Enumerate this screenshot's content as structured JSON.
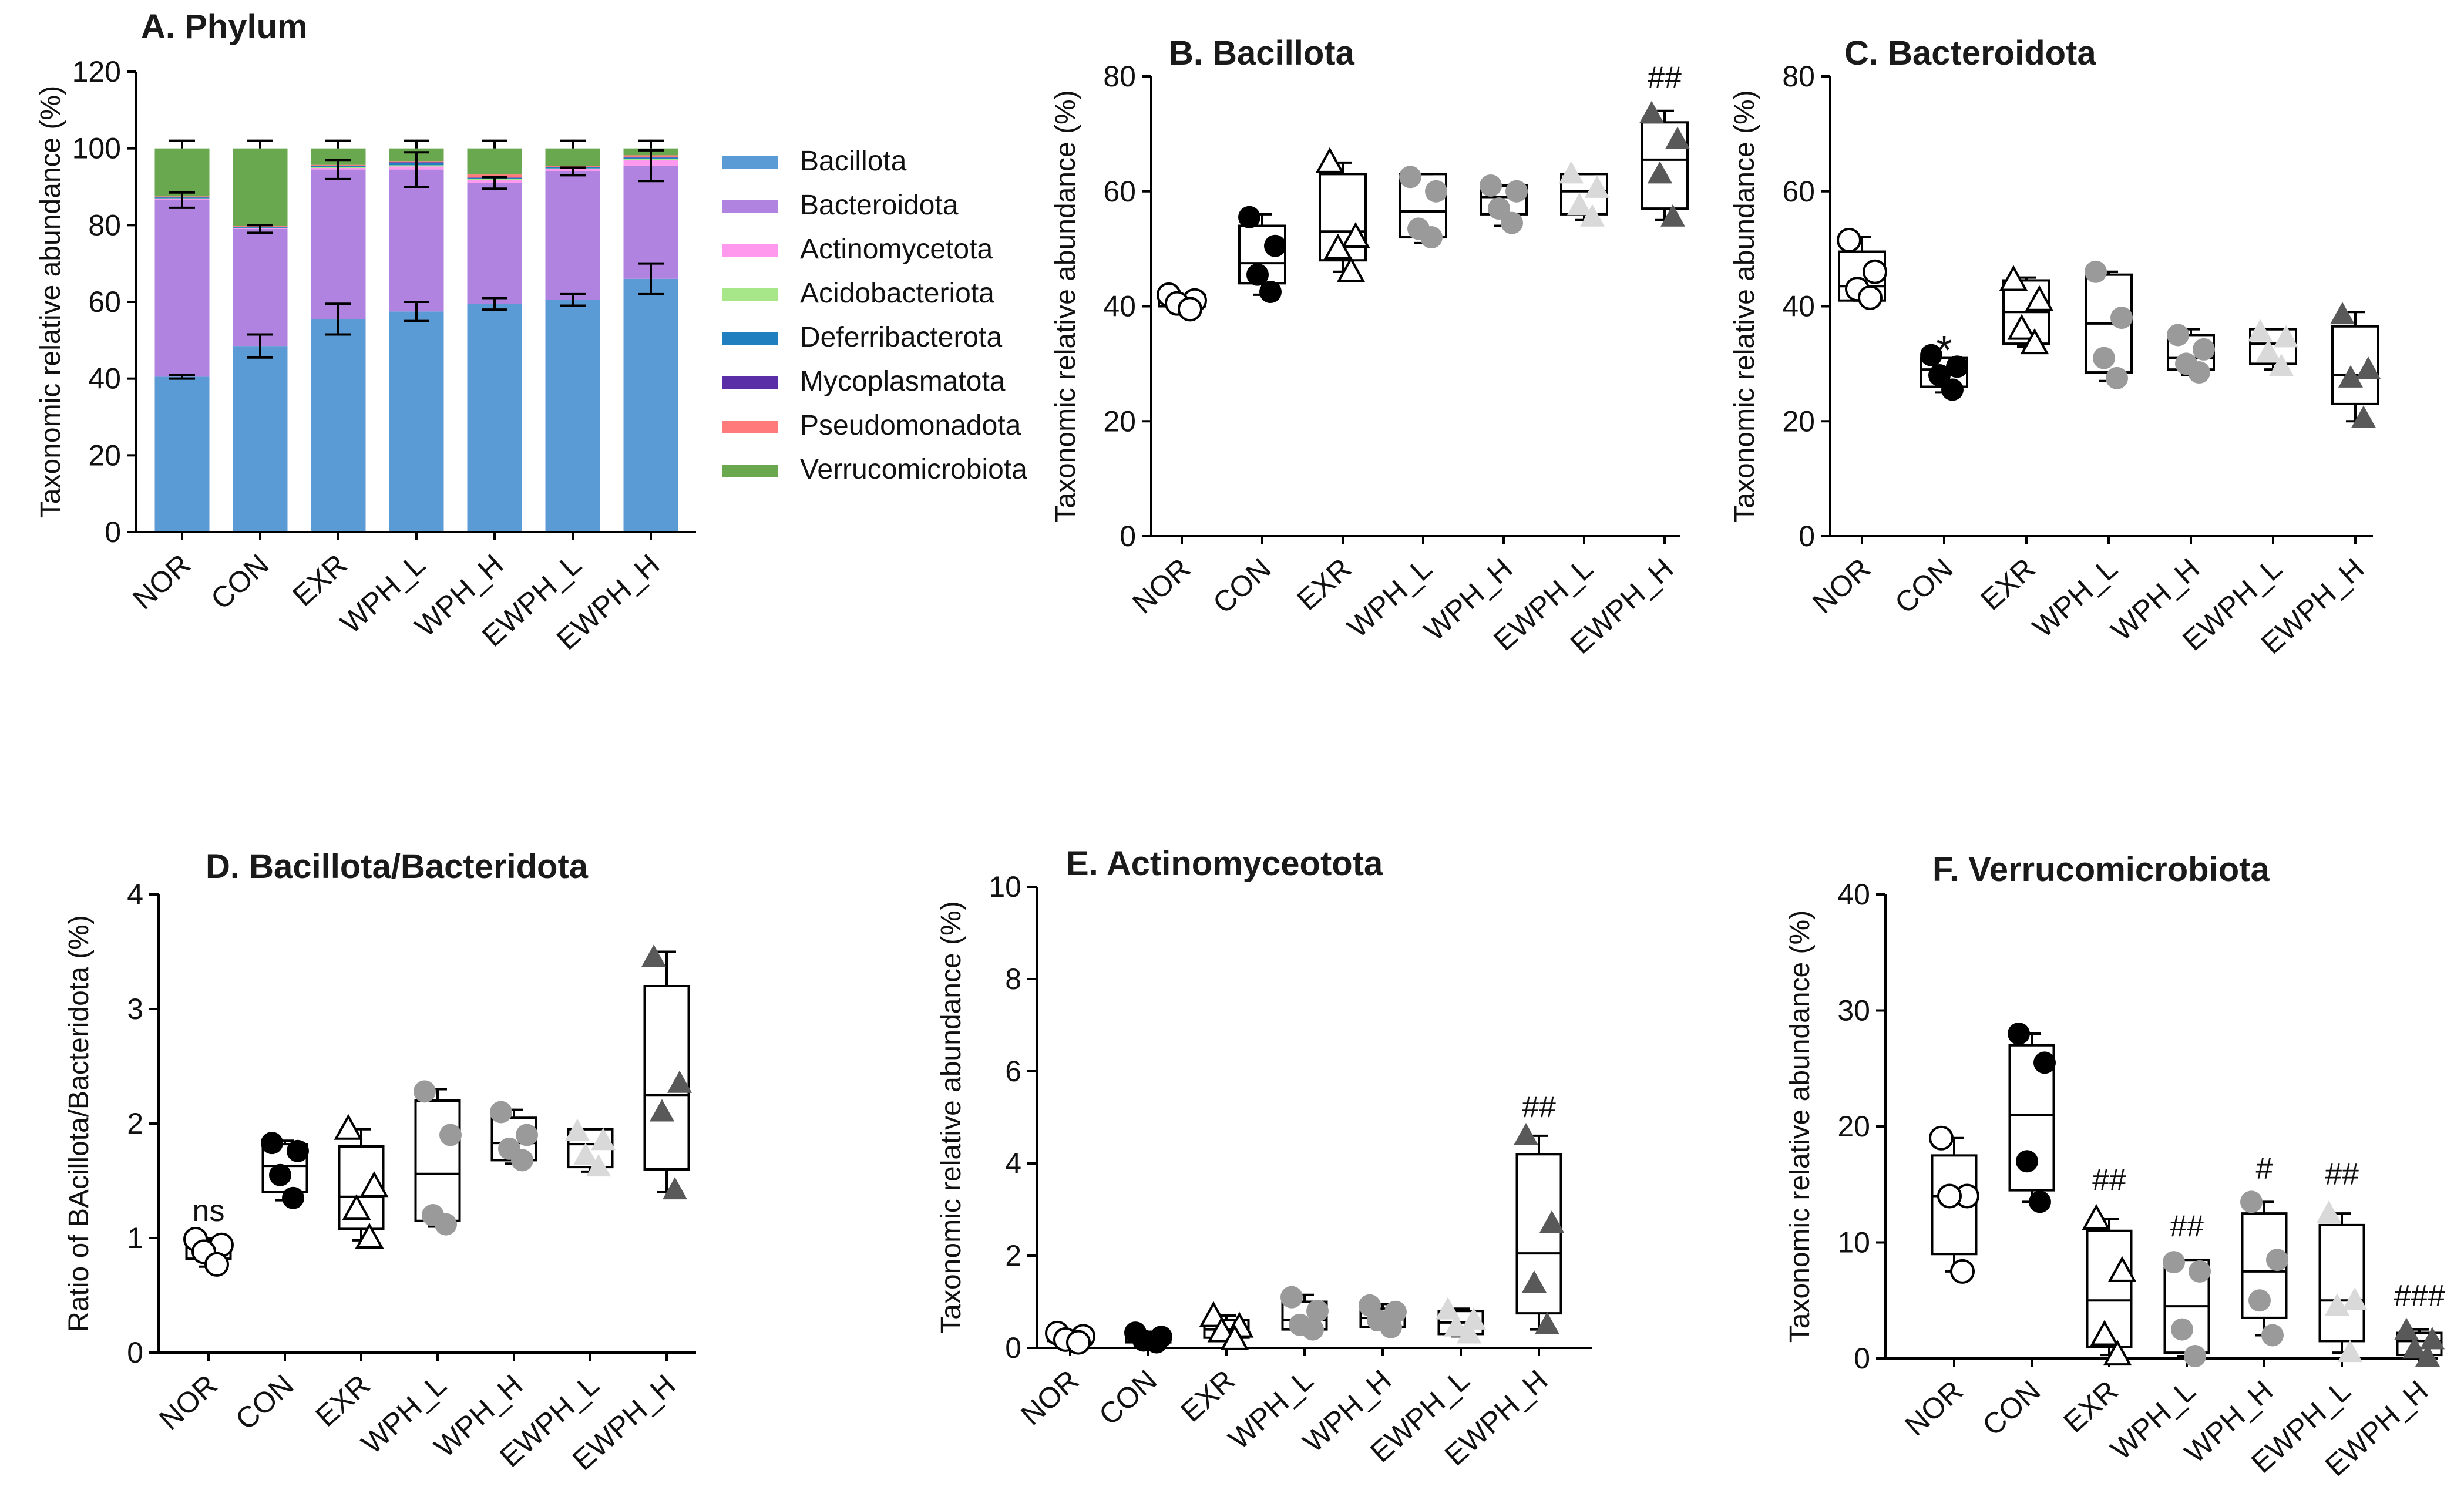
{
  "chart_data": [
    {
      "id": "A",
      "type": "stacked-bar",
      "title": "A. Phylum",
      "ylabel": "Taxonomic relative abundance (%)",
      "ylim": [
        0,
        120
      ],
      "yticks": [
        0,
        20,
        40,
        60,
        80,
        100,
        120
      ],
      "categories": [
        "NOR",
        "CON",
        "EXR",
        "WPH_L",
        "WPH_H",
        "EWPH_L",
        "EWPH_H"
      ],
      "series": [
        {
          "name": "Bacillota",
          "color": "#5b9bd5",
          "values": [
            40.5,
            48.5,
            55.5,
            57.5,
            59.5,
            60.5,
            66.0
          ],
          "errors": [
            0.5,
            3.0,
            4.0,
            2.5,
            1.5,
            1.5,
            4.0
          ]
        },
        {
          "name": "Bacteroidota",
          "color": "#b083e0",
          "values": [
            46.0,
            30.5,
            39.0,
            37.0,
            31.5,
            33.5,
            29.5
          ],
          "errors": [
            2.0,
            1.0,
            2.5,
            4.5,
            1.5,
            1.0,
            4.0
          ]
        },
        {
          "name": "Actinomycetota",
          "color": "#ff99ee",
          "values": [
            0.3,
            0.2,
            0.4,
            0.8,
            0.7,
            0.6,
            1.5
          ]
        },
        {
          "name": "Acidobacteriota",
          "color": "#a8e68a",
          "values": [
            0.2,
            0.1,
            0.2,
            0.3,
            0.3,
            0.2,
            0.3
          ]
        },
        {
          "name": "Deferribacterota",
          "color": "#1f7fbf",
          "values": [
            0.2,
            0.2,
            0.3,
            0.6,
            0.3,
            0.3,
            0.3
          ]
        },
        {
          "name": "Mycoplasmatota",
          "color": "#5a2ea6",
          "values": [
            0.1,
            0.1,
            0.1,
            0.2,
            0.1,
            0.1,
            0.1
          ]
        },
        {
          "name": "Pseudomonadota",
          "color": "#ff7a7a",
          "values": [
            0.2,
            0.2,
            0.2,
            0.3,
            0.8,
            0.3,
            0.5
          ]
        },
        {
          "name": "Verrucomicrobiota",
          "color": "#6aa84f",
          "values": [
            12.5,
            20.2,
            4.3,
            3.3,
            6.8,
            4.5,
            1.8
          ]
        }
      ],
      "legend_position": "right"
    },
    {
      "id": "B",
      "type": "box",
      "title": "B. Bacillota",
      "ylabel": "Taxonomic relative abundance (%)",
      "ylim": [
        0,
        80
      ],
      "yticks": [
        0,
        20,
        40,
        60,
        80
      ],
      "categories": [
        "NOR",
        "CON",
        "EXR",
        "WPH_L",
        "WPH_H",
        "EWPH_L",
        "EWPH_H"
      ],
      "boxes": [
        {
          "q1": 40,
          "median": 41,
          "q3": 42,
          "min": 39,
          "max": 42,
          "points": [
            42,
            41,
            40.5,
            39.5
          ]
        },
        {
          "q1": 44,
          "median": 47.5,
          "q3": 54,
          "min": 42,
          "max": 56,
          "points": [
            55.5,
            50.5,
            45.5,
            42.5
          ]
        },
        {
          "q1": 48,
          "median": 53,
          "q3": 63,
          "min": 46,
          "max": 65,
          "points": [
            65,
            52,
            50,
            46
          ]
        },
        {
          "q1": 52,
          "median": 56.5,
          "q3": 63,
          "min": 51,
          "max": 63,
          "points": [
            62.5,
            60,
            53.5,
            52
          ]
        },
        {
          "q1": 56,
          "median": 59,
          "q3": 61,
          "min": 54,
          "max": 61,
          "points": [
            61,
            60,
            57,
            54.5
          ]
        },
        {
          "q1": 56,
          "median": 60,
          "q3": 63,
          "min": 55,
          "max": 63,
          "points": [
            63,
            60.5,
            57.5,
            55.5
          ]
        },
        {
          "q1": 57,
          "median": 65.5,
          "q3": 72,
          "min": 55,
          "max": 74,
          "points": [
            73.5,
            69,
            63,
            55.5
          ]
        }
      ],
      "markers": [
        "open-circle",
        "filled-circle",
        "open-triangle",
        "gray-circle",
        "gray-circle",
        "light-triangle",
        "dark-triangle"
      ],
      "annotations": [
        {
          "category": "EWPH_H",
          "text": "##",
          "y": 78
        }
      ]
    },
    {
      "id": "C",
      "type": "box",
      "title": "C. Bacteroidota",
      "ylabel": "Taxonomic relative abundance (%)",
      "ylim": [
        0,
        80
      ],
      "yticks": [
        0,
        20,
        40,
        60,
        80
      ],
      "categories": [
        "NOR",
        "CON",
        "EXR",
        "WPH_L",
        "WPH_H",
        "EWPH_L",
        "EWPH_H"
      ],
      "boxes": [
        {
          "q1": 41,
          "median": 43.5,
          "q3": 49.5,
          "min": 41,
          "max": 52,
          "points": [
            51.5,
            46,
            43,
            41.5
          ]
        },
        {
          "q1": 26,
          "median": 29,
          "q3": 31,
          "min": 25,
          "max": 31,
          "points": [
            31.5,
            29.5,
            28,
            25.5
          ]
        },
        {
          "q1": 33.5,
          "median": 39,
          "q3": 44.5,
          "min": 33,
          "max": 45,
          "points": [
            44.5,
            41,
            36,
            33.5
          ]
        },
        {
          "q1": 28.5,
          "median": 37,
          "q3": 45.5,
          "min": 27,
          "max": 46,
          "points": [
            46,
            38,
            31,
            27.5
          ]
        },
        {
          "q1": 29,
          "median": 31,
          "q3": 35,
          "min": 28,
          "max": 36,
          "points": [
            35,
            32.5,
            30,
            28.5
          ]
        },
        {
          "q1": 30,
          "median": 33.5,
          "q3": 36,
          "min": 29,
          "max": 36,
          "points": [
            35.5,
            34.5,
            32,
            29.5
          ]
        },
        {
          "q1": 23,
          "median": 28,
          "q3": 36.5,
          "min": 20,
          "max": 39,
          "points": [
            38.5,
            29,
            27.5,
            20.5
          ]
        }
      ],
      "markers": [
        "open-circle",
        "filled-circle",
        "open-triangle",
        "gray-circle",
        "gray-circle",
        "light-triangle",
        "dark-triangle"
      ],
      "annotations": [
        {
          "category": "CON",
          "text": "*",
          "y": 33
        }
      ]
    },
    {
      "id": "D",
      "type": "box",
      "title": "D. Bacillota/Bacteridota",
      "ylabel": "Ratio of BAcillota/Bacteridota (%)",
      "ylim": [
        0,
        4
      ],
      "yticks": [
        0,
        1,
        2,
        3,
        4
      ],
      "categories": [
        "NOR",
        "CON",
        "EXR",
        "WPH_L",
        "WPH_H",
        "EWPH_L",
        "EWPH_H"
      ],
      "boxes": [
        {
          "q1": 0.82,
          "median": 0.93,
          "q3": 0.98,
          "min": 0.75,
          "max": 1.0,
          "points": [
            0.99,
            0.94,
            0.88,
            0.77
          ]
        },
        {
          "q1": 1.4,
          "median": 1.63,
          "q3": 1.82,
          "min": 1.33,
          "max": 1.85,
          "points": [
            1.83,
            1.76,
            1.55,
            1.35
          ]
        },
        {
          "q1": 1.08,
          "median": 1.36,
          "q3": 1.8,
          "min": 0.98,
          "max": 1.95,
          "points": [
            1.95,
            1.45,
            1.25,
            1.0
          ]
        },
        {
          "q1": 1.15,
          "median": 1.56,
          "q3": 2.2,
          "min": 1.1,
          "max": 2.3,
          "points": [
            2.28,
            1.9,
            1.2,
            1.12
          ]
        },
        {
          "q1": 1.68,
          "median": 1.83,
          "q3": 2.05,
          "min": 1.65,
          "max": 2.12,
          "points": [
            2.1,
            1.9,
            1.78,
            1.68
          ]
        },
        {
          "q1": 1.62,
          "median": 1.82,
          "q3": 1.95,
          "min": 1.58,
          "max": 1.95,
          "points": [
            1.93,
            1.85,
            1.72,
            1.62
          ]
        },
        {
          "q1": 1.6,
          "median": 2.25,
          "q3": 3.2,
          "min": 1.4,
          "max": 3.5,
          "points": [
            3.45,
            2.35,
            2.1,
            1.42
          ]
        }
      ],
      "markers": [
        "open-circle",
        "filled-circle",
        "open-triangle",
        "gray-circle",
        "gray-circle",
        "light-triangle",
        "dark-triangle"
      ],
      "annotations": [
        {
          "category": "NOR",
          "text": "ns",
          "y": 1.15
        }
      ]
    },
    {
      "id": "E",
      "type": "box",
      "title": "E. Actinomyceotota",
      "ylabel": "Taxonomic relative abundance (%)",
      "ylim": [
        0,
        10
      ],
      "yticks": [
        0,
        2,
        4,
        6,
        8,
        10
      ],
      "categories": [
        "NOR",
        "CON",
        "EXR",
        "WPH_L",
        "WPH_H",
        "EWPH_L",
        "EWPH_H"
      ],
      "boxes": [
        {
          "q1": 0.15,
          "median": 0.22,
          "q3": 0.3,
          "min": 0.1,
          "max": 0.35,
          "points": [
            0.32,
            0.25,
            0.18,
            0.12
          ]
        },
        {
          "q1": 0.12,
          "median": 0.2,
          "q3": 0.3,
          "min": 0.1,
          "max": 0.35,
          "points": [
            0.33,
            0.24,
            0.16,
            0.12
          ]
        },
        {
          "q1": 0.22,
          "median": 0.4,
          "q3": 0.6,
          "min": 0.15,
          "max": 0.7,
          "points": [
            0.68,
            0.45,
            0.35,
            0.18
          ]
        },
        {
          "q1": 0.4,
          "median": 0.6,
          "q3": 1.0,
          "min": 0.35,
          "max": 1.15,
          "points": [
            1.1,
            0.8,
            0.5,
            0.4
          ]
        },
        {
          "q1": 0.45,
          "median": 0.65,
          "q3": 0.85,
          "min": 0.4,
          "max": 0.95,
          "points": [
            0.92,
            0.78,
            0.6,
            0.45
          ]
        },
        {
          "q1": 0.3,
          "median": 0.55,
          "q3": 0.8,
          "min": 0.25,
          "max": 0.85,
          "points": [
            0.82,
            0.6,
            0.45,
            0.3
          ]
        },
        {
          "q1": 0.75,
          "median": 2.05,
          "q3": 4.2,
          "min": 0.4,
          "max": 4.6,
          "points": [
            4.6,
            2.7,
            1.4,
            0.5
          ]
        }
      ],
      "markers": [
        "open-circle",
        "filled-circle",
        "open-triangle",
        "gray-circle",
        "gray-circle",
        "light-triangle",
        "dark-triangle"
      ],
      "annotations": [
        {
          "category": "EWPH_H",
          "text": "##",
          "y": 5.0
        }
      ]
    },
    {
      "id": "F",
      "type": "box",
      "title": "F. Verrucomicrobiota",
      "ylabel": "Taxonomic relative abundance (%)",
      "ylim": [
        0,
        40
      ],
      "yticks": [
        0,
        10,
        20,
        30,
        40
      ],
      "categories": [
        "NOR",
        "CON",
        "EXR",
        "WPH_L",
        "WPH_H",
        "EWPH_L",
        "EWPH_H"
      ],
      "boxes": [
        {
          "q1": 9,
          "median": 14,
          "q3": 17.5,
          "min": 7.5,
          "max": 19,
          "points": [
            19,
            14,
            14,
            7.5
          ]
        },
        {
          "q1": 14.5,
          "median": 21,
          "q3": 27,
          "min": 13.5,
          "max": 28,
          "points": [
            28,
            25.5,
            17,
            13.5
          ]
        },
        {
          "q1": 1,
          "median": 5,
          "q3": 11,
          "min": 0.3,
          "max": 12,
          "points": [
            12,
            7.5,
            2,
            0.3
          ]
        },
        {
          "q1": 0.5,
          "median": 4.5,
          "q3": 8.5,
          "min": 0.2,
          "max": 8.5,
          "points": [
            8.3,
            7.5,
            2.5,
            0.2
          ]
        },
        {
          "q1": 3.5,
          "median": 7.5,
          "q3": 12.5,
          "min": 2,
          "max": 13.5,
          "points": [
            13.5,
            8.5,
            5,
            2
          ]
        },
        {
          "q1": 1.5,
          "median": 5,
          "q3": 11.5,
          "min": 0.5,
          "max": 12.5,
          "points": [
            12.5,
            5,
            4.5,
            0.5
          ]
        },
        {
          "q1": 0.3,
          "median": 1.5,
          "q3": 2.2,
          "min": 0.1,
          "max": 2.5,
          "points": [
            2.4,
            1.6,
            0.8,
            0.1
          ]
        }
      ],
      "markers": [
        "open-circle",
        "filled-circle",
        "open-triangle",
        "gray-circle",
        "gray-circle",
        "light-triangle",
        "dark-triangle"
      ],
      "annotations": [
        {
          "category": "EXR",
          "text": "##",
          "y": 14.5
        },
        {
          "category": "WPH_L",
          "text": "##",
          "y": 10.5
        },
        {
          "category": "WPH_H",
          "text": "#",
          "y": 15.5
        },
        {
          "category": "EWPH_L",
          "text": "##",
          "y": 15.0
        },
        {
          "category": "EWPH_H",
          "text": "###",
          "y": 4.5
        }
      ]
    }
  ]
}
